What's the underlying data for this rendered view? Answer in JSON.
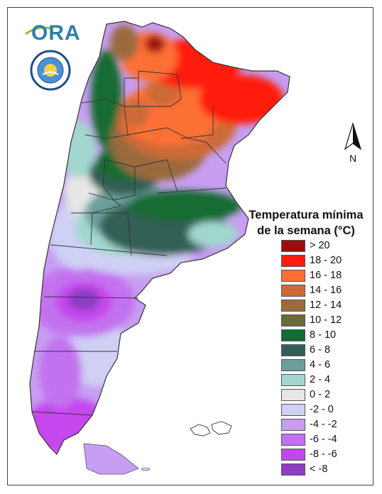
{
  "logo": {
    "text": "ORA",
    "seal_text": "SERVICIO METEOROLÓGICO NACIONAL ARGENTINA"
  },
  "north_arrow": {
    "label": "N"
  },
  "legend": {
    "title_line1": "Temperatura mínima",
    "title_line2": "de la semana (°C)",
    "items": [
      {
        "label": "> 20",
        "color": "#9b0d0d"
      },
      {
        "label": "18 - 20",
        "color": "#ff1a10"
      },
      {
        "label": "16 - 18",
        "color": "#fd6f35"
      },
      {
        "label": "14 - 16",
        "color": "#cd6a38"
      },
      {
        "label": "12 - 14",
        "color": "#9a6b3d"
      },
      {
        "label": "10 - 12",
        "color": "#6b6b37"
      },
      {
        "label": "8 - 10",
        "color": "#136c33"
      },
      {
        "label": "6 - 8",
        "color": "#335e57"
      },
      {
        "label": "4 - 6",
        "color": "#6a9e9a"
      },
      {
        "label": "2 - 4",
        "color": "#a2d7cf"
      },
      {
        "label": "0 - 2",
        "color": "#e6e6e6"
      },
      {
        "label": "-2 - 0",
        "color": "#cfd0f4"
      },
      {
        "label": "-4 - -2",
        "color": "#c79ef2"
      },
      {
        "label": "-6 - -4",
        "color": "#c372ef"
      },
      {
        "label": "-8 - -6",
        "color": "#c546ed"
      },
      {
        "label": "< -8",
        "color": "#8e3dc4"
      }
    ]
  }
}
